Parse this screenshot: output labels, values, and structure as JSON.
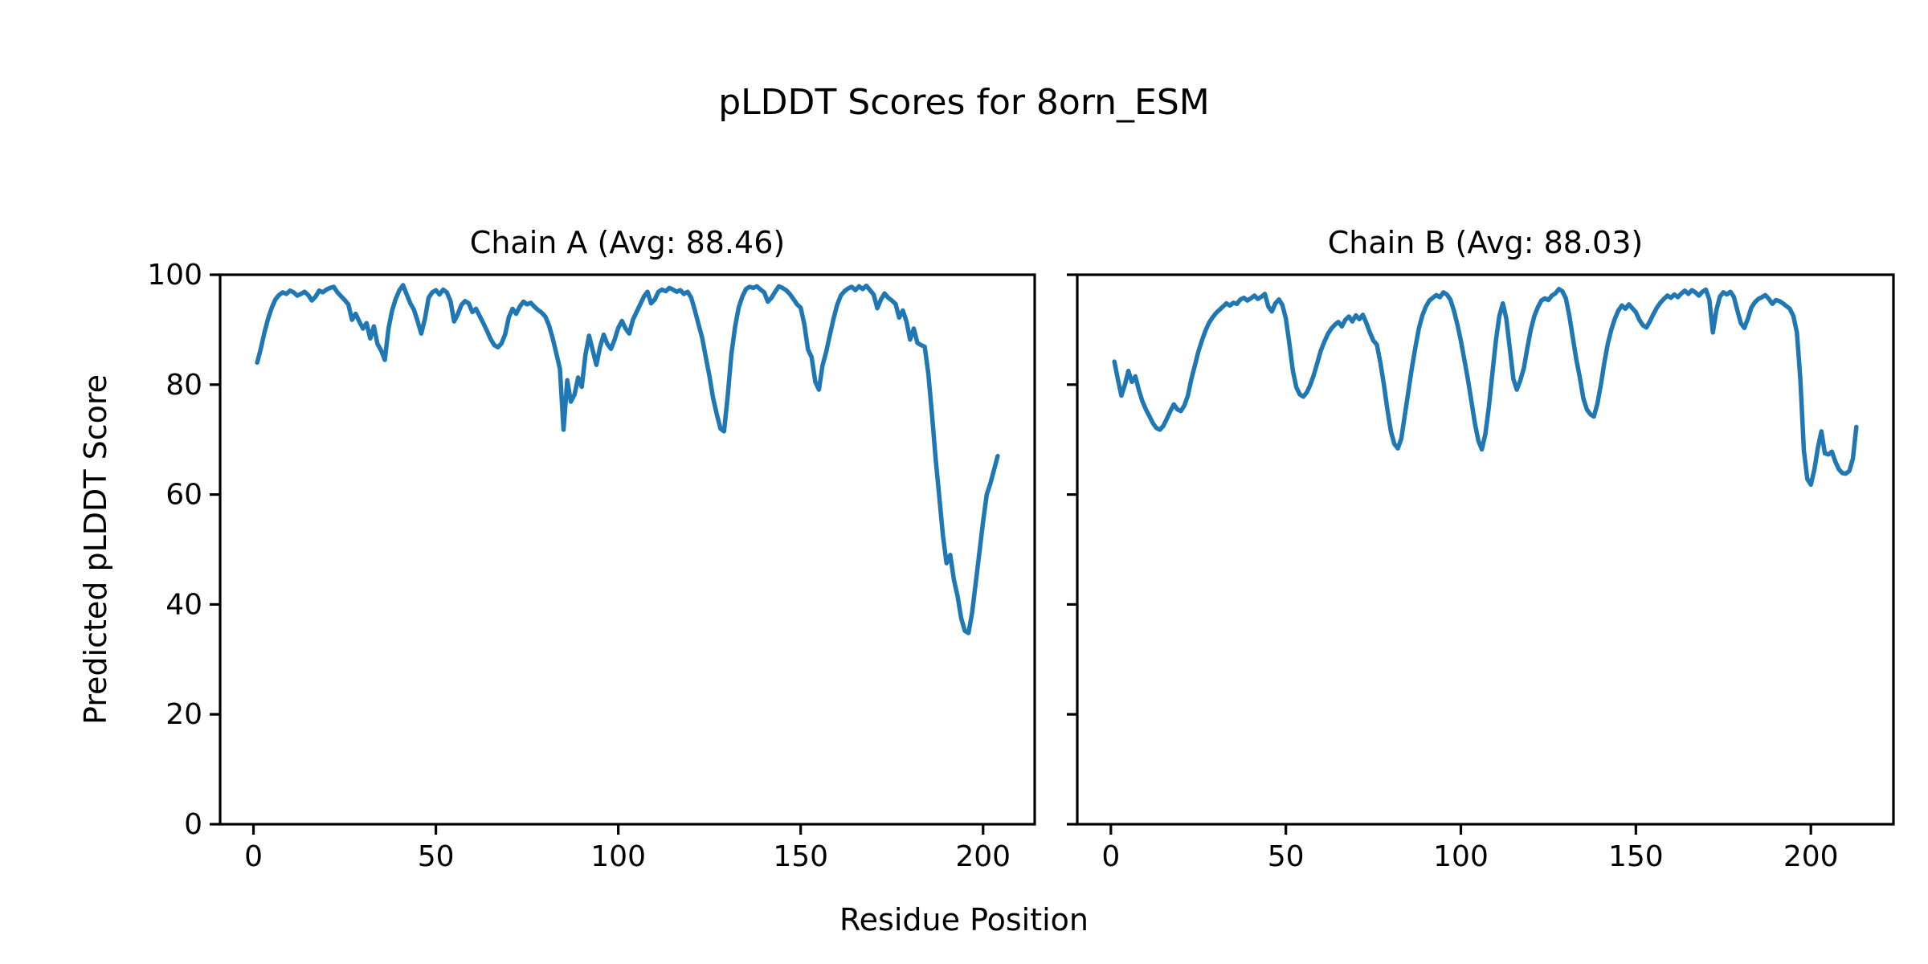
{
  "figure": {
    "title": "pLDDT Scores for 8orn_ESM",
    "xlabel": "Residue Position",
    "ylabel": "Predicted pLDDT Score",
    "background_color": "#ffffff",
    "line_color": "#1f77b4",
    "axis_color": "#000000"
  },
  "chart_data": [
    {
      "type": "line",
      "title": "Chain A (Avg: 88.46)",
      "series_name": "Chain A pLDDT",
      "average": 88.46,
      "x_start": 1,
      "x_step": 1,
      "xlim": [
        -9.15,
        214.15
      ],
      "ylim": [
        0,
        100
      ],
      "xticks": [
        0,
        50,
        100,
        150,
        200
      ],
      "yticks": [
        0,
        20,
        40,
        60,
        80,
        100
      ],
      "y_tick_labels_visible": true,
      "grid": false,
      "values": [
        84.0,
        86.5,
        89.5,
        92.0,
        94.0,
        95.5,
        96.3,
        96.8,
        96.5,
        97.1,
        96.8,
        96.2,
        96.5,
        96.9,
        96.3,
        95.3,
        96.0,
        97.1,
        96.8,
        97.3,
        97.6,
        97.8,
        96.8,
        96.1,
        95.4,
        94.6,
        91.8,
        92.9,
        91.5,
        90.2,
        91.2,
        88.4,
        90.6,
        87.4,
        86.2,
        84.5,
        90.2,
        93.5,
        95.6,
        97.2,
        98.1,
        96.4,
        94.8,
        93.6,
        91.5,
        89.3,
        92.0,
        95.8,
        96.8,
        97.2,
        96.4,
        97.3,
        96.8,
        95.2,
        91.5,
        92.8,
        94.5,
        95.2,
        94.8,
        93.2,
        93.8,
        92.5,
        91.2,
        89.8,
        88.3,
        87.2,
        86.8,
        87.5,
        89.2,
        92.3,
        93.8,
        92.9,
        94.2,
        95.1,
        94.6,
        94.9,
        94.2,
        93.6,
        93.1,
        92.4,
        90.8,
        88.5,
        85.7,
        82.9,
        71.8,
        80.8,
        76.9,
        78.2,
        81.3,
        79.6,
        85.5,
        88.9,
        86.2,
        83.6,
        86.8,
        89.1,
        87.4,
        86.5,
        88.2,
        90.3,
        91.6,
        90.2,
        89.3,
        91.8,
        93.2,
        94.6,
        96.0,
        96.9,
        94.8,
        95.5,
        96.9,
        97.3,
        97.0,
        97.6,
        97.3,
        96.9,
        97.2,
        96.5,
        96.9,
        95.8,
        93.5,
        91.0,
        88.5,
        85.0,
        81.5,
        77.5,
        74.6,
        72.0,
        71.5,
        78.0,
        85.5,
        90.5,
        94.0,
        96.0,
        97.4,
        97.8,
        97.6,
        97.9,
        97.3,
        96.8,
        95.1,
        95.8,
        96.9,
        97.9,
        97.6,
        97.2,
        96.5,
        95.6,
        94.6,
        94.0,
        91.0,
        86.4,
        85.0,
        80.5,
        79.1,
        83.5,
        86.0,
        89.0,
        92.0,
        94.5,
        96.2,
        97.0,
        97.5,
        97.8,
        97.2,
        97.9,
        97.4,
        98.0,
        97.2,
        96.4,
        93.9,
        95.5,
        96.6,
        95.8,
        95.3,
        94.7,
        92.2,
        93.5,
        91.5,
        88.2,
        90.2,
        87.6,
        87.2,
        86.9,
        82.0,
        74.5,
        66.5,
        59.5,
        52.5,
        47.5,
        49.0,
        44.5,
        41.5,
        37.5,
        35.2,
        34.8,
        38.5,
        44.0,
        49.5,
        55.0,
        60.0,
        62.0,
        64.5,
        67.0
      ]
    },
    {
      "type": "line",
      "title": "Chain B (Avg: 88.03)",
      "series_name": "Chain B pLDDT",
      "average": 88.03,
      "x_start": 1,
      "x_step": 1,
      "xlim": [
        -9.6,
        223.6
      ],
      "ylim": [
        0,
        100
      ],
      "xticks": [
        0,
        50,
        100,
        150,
        200
      ],
      "yticks": [
        0,
        20,
        40,
        60,
        80,
        100
      ],
      "y_tick_labels_visible": false,
      "grid": false,
      "values": [
        84.2,
        81.0,
        78.0,
        80.0,
        82.5,
        80.5,
        81.5,
        79.0,
        77.0,
        75.5,
        74.3,
        73.0,
        72.1,
        71.8,
        72.5,
        73.8,
        75.2,
        76.4,
        75.5,
        75.2,
        76.2,
        78.0,
        81.0,
        83.5,
        86.0,
        88.0,
        89.8,
        91.2,
        92.2,
        93.0,
        93.6,
        94.2,
        94.8,
        94.4,
        94.9,
        94.7,
        95.5,
        95.8,
        95.3,
        95.7,
        96.2,
        95.6,
        96.0,
        96.5,
        94.2,
        93.3,
        94.8,
        95.5,
        94.5,
        92.0,
        87.5,
        82.5,
        79.5,
        78.2,
        77.8,
        78.6,
        80.0,
        81.8,
        84.0,
        86.2,
        87.8,
        89.2,
        90.2,
        90.9,
        91.4,
        90.6,
        91.8,
        92.4,
        91.5,
        92.6,
        91.9,
        92.7,
        91.2,
        89.5,
        88.0,
        87.3,
        84.0,
        80.0,
        75.5,
        71.5,
        69.2,
        68.4,
        70.2,
        74.5,
        78.8,
        83.0,
        86.8,
        90.2,
        92.6,
        94.2,
        95.3,
        95.8,
        96.3,
        95.9,
        96.8,
        96.4,
        95.5,
        93.5,
        91.0,
        88.0,
        84.5,
        81.0,
        77.0,
        73.0,
        69.8,
        68.2,
        71.0,
        76.0,
        82.0,
        88.0,
        92.5,
        94.8,
        92.0,
        86.5,
        81.0,
        79.1,
        80.8,
        83.0,
        86.7,
        90.0,
        92.5,
        94.1,
        95.3,
        95.7,
        95.4,
        96.2,
        96.6,
        97.4,
        97.0,
        95.7,
        92.5,
        88.5,
        84.5,
        81.3,
        77.5,
        75.5,
        74.6,
        74.2,
        76.5,
        80.0,
        84.0,
        87.5,
        90.0,
        92.0,
        93.5,
        94.4,
        93.8,
        94.6,
        93.9,
        93.2,
        91.8,
        90.8,
        90.4,
        91.5,
        92.8,
        94.0,
        94.9,
        95.6,
        96.2,
        95.8,
        96.4,
        95.9,
        96.6,
        97.1,
        96.5,
        97.2,
        96.8,
        96.2,
        96.9,
        97.3,
        95.5,
        89.5,
        93.5,
        96.0,
        96.8,
        96.4,
        96.9,
        96.0,
        93.5,
        91.2,
        90.3,
        92.0,
        94.0,
        95.0,
        95.6,
        95.9,
        96.3,
        95.6,
        94.7,
        95.4,
        95.2,
        94.8,
        94.3,
        93.8,
        92.5,
        89.5,
        81.0,
        68.0,
        62.8,
        61.8,
        64.5,
        68.5,
        71.5,
        67.5,
        67.3,
        67.8,
        66.0,
        64.6,
        63.9,
        63.8,
        64.3,
        66.5,
        72.3
      ]
    }
  ]
}
